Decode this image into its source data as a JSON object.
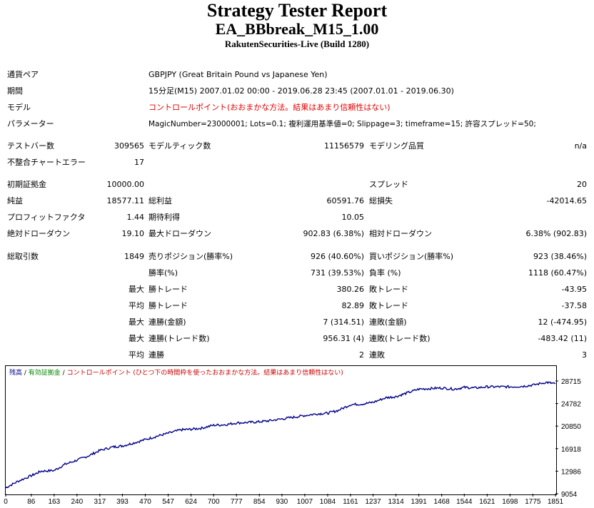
{
  "header": {
    "title": "Strategy Tester Report",
    "ea": "EA_BBbreak_M15_1.00",
    "server": "RakutenSecurities-Live (Build 1280)"
  },
  "settings": {
    "pair_label": "通貨ペア",
    "pair_value": "GBPJPY (Great Britain Pound vs Japanese Yen)",
    "period_label": "期間",
    "period_value": "15分足(M15) 2007.01.02 00:00 - 2019.06.28 23:45 (2007.01.01 - 2019.06.30)",
    "model_label": "モデル",
    "model_value": "コントロールポイント(おおまかな方法。結果はあまり信頼性はない)",
    "params_label": "パラメーター",
    "params_value": "MagicNumber=23000001; Lots=0.1; 複利運用基準値=0; Slippage=3; timeframe=15; 許容スプレッド=50;"
  },
  "stats": {
    "bars_label": "テストバー数",
    "bars_value": "309565",
    "ticks_label": "モデルティック数",
    "ticks_value": "11156579",
    "quality_label": "モデリング品質",
    "quality_value": "n/a",
    "mismatch_label": "不整合チャートエラー",
    "mismatch_value": "17",
    "deposit_label": "初期証拠金",
    "deposit_value": "10000.00",
    "spread_label": "スプレッド",
    "spread_value": "20",
    "net_label": "純益",
    "net_value": "18577.11",
    "gross_profit_label": "総利益",
    "gross_profit_value": "60591.76",
    "gross_loss_label": "総損失",
    "gross_loss_value": "-42014.65",
    "pf_label": "プロフィットファクタ",
    "pf_value": "1.44",
    "expected_label": "期待利得",
    "expected_value": "10.05",
    "abs_dd_label": "絶対ドローダウン",
    "abs_dd_value": "19.10",
    "max_dd_label": "最大ドローダウン",
    "max_dd_value": "902.83 (6.38%)",
    "rel_dd_label": "相対ドローダウン",
    "rel_dd_value": "6.38% (902.83)",
    "total_label": "総取引数",
    "total_value": "1849",
    "short_label": "売りポジション(勝率%)",
    "short_value": "926 (40.60%)",
    "long_label": "買いポジション(勝率%)",
    "long_value": "923 (38.46%)",
    "winrate_label": "勝率(%)",
    "winrate_value": "731 (39.53%)",
    "lossrate_label": "負率 (%)",
    "lossrate_value": "1118 (60.47%)",
    "largest_prefix": "最大",
    "largest_win_label": "勝トレード",
    "largest_win_value": "380.26",
    "largest_loss_label": "敗トレード",
    "largest_loss_value": "-43.95",
    "avg_prefix": "平均",
    "avg_win_label": "勝トレード",
    "avg_win_value": "82.89",
    "avg_loss_label": "敗トレード",
    "avg_loss_value": "-37.58",
    "max_prefix1": "最大",
    "cons_wins_amt_label": "連勝(金額)",
    "cons_wins_amt_value": "7 (314.51)",
    "cons_loss_amt_label": "連敗(金額)",
    "cons_loss_amt_value": "12 (-474.95)",
    "max_prefix2": "最大",
    "cons_wins_cnt_label": "連勝(トレード数)",
    "cons_wins_cnt_value": "956.31 (4)",
    "cons_loss_cnt_label": "連敗(トレード数)",
    "cons_loss_cnt_value": "-483.42 (11)",
    "avg_prefix2": "平均",
    "avg_cons_wins_label": "連勝",
    "avg_cons_wins_value": "2",
    "avg_cons_loss_label": "連敗",
    "avg_cons_loss_value": "3"
  },
  "chart_legend": {
    "balance": "残高",
    "sep1": " / ",
    "equity": "有効証拠金",
    "sep2": " / ",
    "note": "コントロールポイント (ひとつ下の時間枠を使ったおおまかな方法。結果はあまり信頼性はない)"
  },
  "colors": {
    "line": "#000088",
    "note_red": "#cc0000"
  },
  "chart_data": {
    "type": "line",
    "title": "",
    "xlabel": "",
    "ylabel": "",
    "x_ticks": [
      "0",
      "86",
      "163",
      "240",
      "317",
      "393",
      "470",
      "547",
      "624",
      "700",
      "777",
      "854",
      "930",
      "1007",
      "1084",
      "1161",
      "1237",
      "1314",
      "1391",
      "1468",
      "1544",
      "1621",
      "1698",
      "1775",
      "1851"
    ],
    "y_ticks": [
      "28715",
      "24782",
      "20850",
      "16918",
      "12986",
      "9054"
    ],
    "xlim": [
      0,
      1851
    ],
    "ylim": [
      9054,
      28715
    ],
    "series": [
      {
        "x": [
          0,
          40,
          86,
          120,
          163,
          200,
          240,
          280,
          317,
          360,
          393,
          430,
          470,
          510,
          547,
          590,
          624,
          660,
          700,
          740,
          777,
          820,
          854,
          890,
          930,
          970,
          1007,
          1050,
          1084,
          1120,
          1161,
          1200,
          1237,
          1280,
          1314,
          1350,
          1391,
          1430,
          1468,
          1510,
          1544,
          1580,
          1621,
          1660,
          1698,
          1740,
          1775,
          1820,
          1851
        ],
        "y": [
          10100,
          11200,
          12200,
          13000,
          13100,
          14200,
          14900,
          15700,
          16600,
          17200,
          17400,
          17900,
          18500,
          19100,
          19600,
          20200,
          20300,
          20500,
          21000,
          21100,
          21400,
          21500,
          21600,
          21800,
          22100,
          22400,
          22700,
          23000,
          23100,
          23600,
          24600,
          24700,
          25000,
          25800,
          26000,
          26600,
          27300,
          27400,
          27500,
          27300,
          27600,
          27500,
          27700,
          27700,
          27700,
          27800,
          28000,
          28500,
          28200
        ]
      }
    ]
  }
}
